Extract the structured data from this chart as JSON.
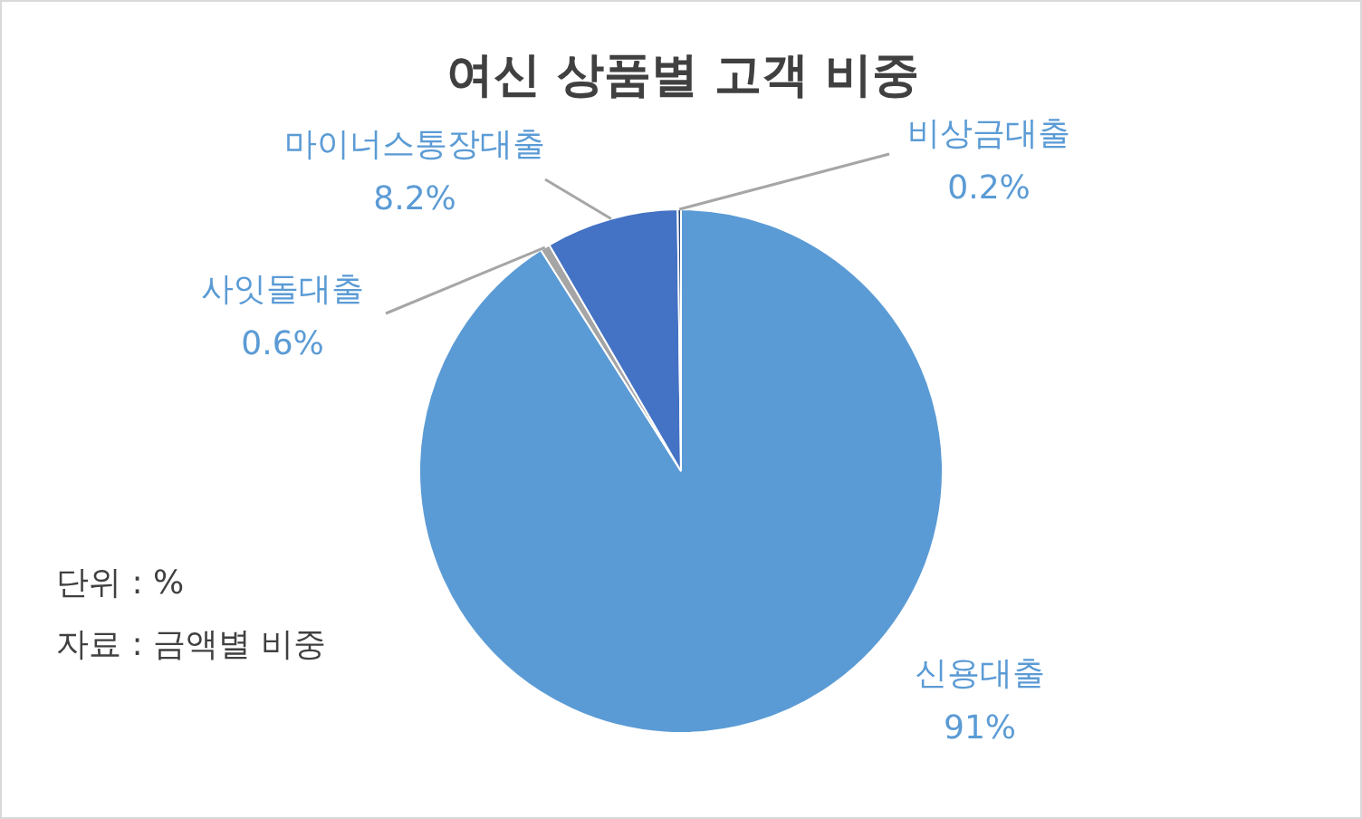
{
  "chart_data": {
    "type": "pie",
    "title": "여신 상품별 고객 비중",
    "categories": [
      "신용대출",
      "사잇돌대출",
      "마이너스통장대출",
      "비상금대출"
    ],
    "values": [
      91,
      0.6,
      8.2,
      0.2
    ],
    "colors": [
      "#5b9bd5",
      "#a5a5a5",
      "#4472c4",
      "#264478"
    ],
    "value_labels": [
      "91%",
      "0.6%",
      "8.2%",
      "0.2%"
    ],
    "legend": false,
    "annotations": [
      "단위 : %",
      "자료 : 금액별 비중"
    ]
  }
}
